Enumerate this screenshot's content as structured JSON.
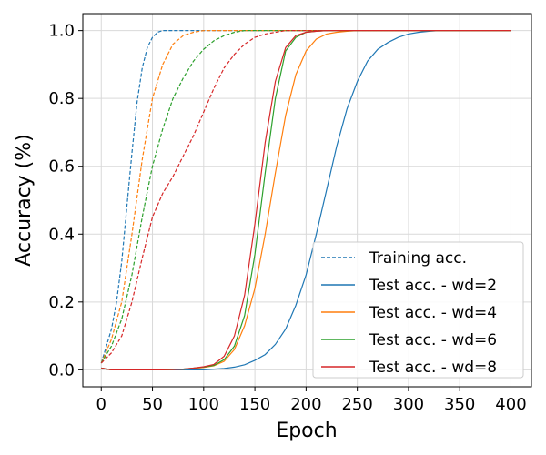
{
  "chart_data": {
    "type": "line",
    "title": "",
    "xlabel": "Epoch",
    "ylabel": "Accuracy (%)",
    "xlim": [
      -18,
      420
    ],
    "ylim": [
      -0.05,
      1.05
    ],
    "xticks": [
      0,
      50,
      100,
      150,
      200,
      250,
      300,
      350,
      400
    ],
    "yticks": [
      0.0,
      0.2,
      0.4,
      0.6,
      0.8,
      1.0
    ],
    "xtick_labels": [
      "0",
      "50",
      "100",
      "150",
      "200",
      "250",
      "300",
      "350",
      "400"
    ],
    "ytick_labels": [
      "0.0",
      "0.2",
      "0.4",
      "0.6",
      "0.8",
      "1.0"
    ],
    "grid": true,
    "legend_position": "lower-right",
    "legend": [
      {
        "label": "Training acc.",
        "color": "#1f77b4",
        "dash": true
      },
      {
        "label": "Test acc. - wd=2",
        "color": "#1f77b4",
        "dash": false
      },
      {
        "label": "Test acc. - wd=4",
        "color": "#ff7f0e",
        "dash": false
      },
      {
        "label": "Test acc. - wd=6",
        "color": "#2ca02c",
        "dash": false
      },
      {
        "label": "Test acc. - wd=8",
        "color": "#d62728",
        "dash": false
      }
    ],
    "series": [
      {
        "kind": "train",
        "color": "#1f77b4",
        "dash": true,
        "x": [
          0,
          5,
          10,
          15,
          20,
          25,
          30,
          35,
          40,
          45,
          50,
          55,
          60,
          70,
          80,
          100,
          150,
          200,
          250,
          300,
          350,
          400
        ],
        "y": [
          0.02,
          0.07,
          0.12,
          0.2,
          0.32,
          0.48,
          0.64,
          0.79,
          0.89,
          0.95,
          0.98,
          0.995,
          1.0,
          1.0,
          1.0,
          1.0,
          1.0,
          1.0,
          1.0,
          1.0,
          1.0,
          1.0
        ]
      },
      {
        "kind": "train",
        "color": "#ff7f0e",
        "dash": true,
        "x": [
          0,
          10,
          20,
          30,
          40,
          50,
          60,
          70,
          80,
          90,
          100,
          110,
          120,
          150,
          200,
          250,
          300,
          350,
          400
        ],
        "y": [
          0.02,
          0.09,
          0.2,
          0.4,
          0.62,
          0.8,
          0.9,
          0.96,
          0.985,
          0.995,
          1.0,
          1.0,
          1.0,
          1.0,
          1.0,
          1.0,
          1.0,
          1.0,
          1.0
        ]
      },
      {
        "kind": "train",
        "color": "#2ca02c",
        "dash": true,
        "x": [
          0,
          10,
          20,
          30,
          40,
          50,
          60,
          70,
          80,
          90,
          100,
          110,
          120,
          130,
          140,
          150,
          160,
          200,
          250,
          300,
          350,
          400
        ],
        "y": [
          0.02,
          0.07,
          0.15,
          0.28,
          0.45,
          0.6,
          0.71,
          0.8,
          0.86,
          0.91,
          0.945,
          0.97,
          0.985,
          0.995,
          1.0,
          1.0,
          1.0,
          1.0,
          1.0,
          1.0,
          1.0,
          1.0
        ]
      },
      {
        "kind": "train",
        "color": "#d62728",
        "dash": true,
        "x": [
          0,
          10,
          20,
          30,
          40,
          50,
          60,
          70,
          80,
          90,
          100,
          110,
          120,
          130,
          140,
          150,
          160,
          170,
          180,
          200,
          250,
          300,
          350,
          400
        ],
        "y": [
          0.02,
          0.05,
          0.1,
          0.2,
          0.33,
          0.45,
          0.52,
          0.57,
          0.63,
          0.69,
          0.76,
          0.83,
          0.89,
          0.93,
          0.96,
          0.98,
          0.99,
          0.995,
          1.0,
          1.0,
          1.0,
          1.0,
          1.0,
          1.0
        ]
      },
      {
        "kind": "test",
        "color": "#1f77b4",
        "dash": false,
        "name": "Test acc. - wd=2",
        "x": [
          0,
          10,
          20,
          40,
          60,
          80,
          100,
          110,
          120,
          130,
          140,
          150,
          160,
          170,
          180,
          190,
          200,
          210,
          220,
          230,
          240,
          250,
          260,
          270,
          280,
          290,
          300,
          310,
          320,
          330,
          340,
          400
        ],
        "y": [
          0.005,
          0.0,
          0.0,
          0.0,
          0.0,
          0.0,
          0.0,
          0.002,
          0.004,
          0.008,
          0.015,
          0.028,
          0.045,
          0.075,
          0.12,
          0.19,
          0.28,
          0.4,
          0.53,
          0.66,
          0.77,
          0.85,
          0.91,
          0.945,
          0.965,
          0.98,
          0.99,
          0.995,
          0.998,
          1.0,
          1.0,
          1.0
        ]
      },
      {
        "kind": "test",
        "color": "#ff7f0e",
        "dash": false,
        "name": "Test acc. - wd=4",
        "x": [
          0,
          10,
          20,
          40,
          60,
          80,
          90,
          100,
          110,
          120,
          130,
          140,
          150,
          160,
          170,
          180,
          190,
          200,
          210,
          220,
          230,
          240,
          250,
          260,
          300,
          350,
          400
        ],
        "y": [
          0.005,
          0.0,
          0.0,
          0.0,
          0.0,
          0.002,
          0.004,
          0.007,
          0.012,
          0.025,
          0.06,
          0.13,
          0.24,
          0.4,
          0.58,
          0.75,
          0.87,
          0.94,
          0.975,
          0.99,
          0.995,
          0.998,
          1.0,
          1.0,
          1.0,
          1.0,
          1.0
        ]
      },
      {
        "kind": "test",
        "color": "#2ca02c",
        "dash": false,
        "name": "Test acc. - wd=6",
        "x": [
          0,
          10,
          20,
          40,
          60,
          80,
          90,
          100,
          110,
          120,
          130,
          140,
          150,
          160,
          170,
          180,
          190,
          200,
          210,
          220,
          230,
          250,
          300,
          350,
          400
        ],
        "y": [
          0.005,
          0.0,
          0.0,
          0.0,
          0.0,
          0.002,
          0.005,
          0.008,
          0.013,
          0.03,
          0.07,
          0.16,
          0.34,
          0.58,
          0.8,
          0.94,
          0.98,
          0.995,
          0.998,
          1.0,
          1.0,
          1.0,
          1.0,
          1.0,
          1.0
        ]
      },
      {
        "kind": "test",
        "color": "#d62728",
        "dash": false,
        "name": "Test acc. - wd=8",
        "x": [
          0,
          10,
          20,
          40,
          60,
          80,
          90,
          100,
          110,
          120,
          130,
          140,
          150,
          160,
          170,
          180,
          190,
          200,
          210,
          220,
          230,
          250,
          300,
          350,
          400
        ],
        "y": [
          0.005,
          0.0,
          0.0,
          0.0,
          0.0,
          0.002,
          0.005,
          0.009,
          0.016,
          0.04,
          0.1,
          0.22,
          0.43,
          0.67,
          0.85,
          0.95,
          0.985,
          0.995,
          0.998,
          1.0,
          1.0,
          1.0,
          1.0,
          1.0,
          1.0
        ]
      }
    ]
  }
}
